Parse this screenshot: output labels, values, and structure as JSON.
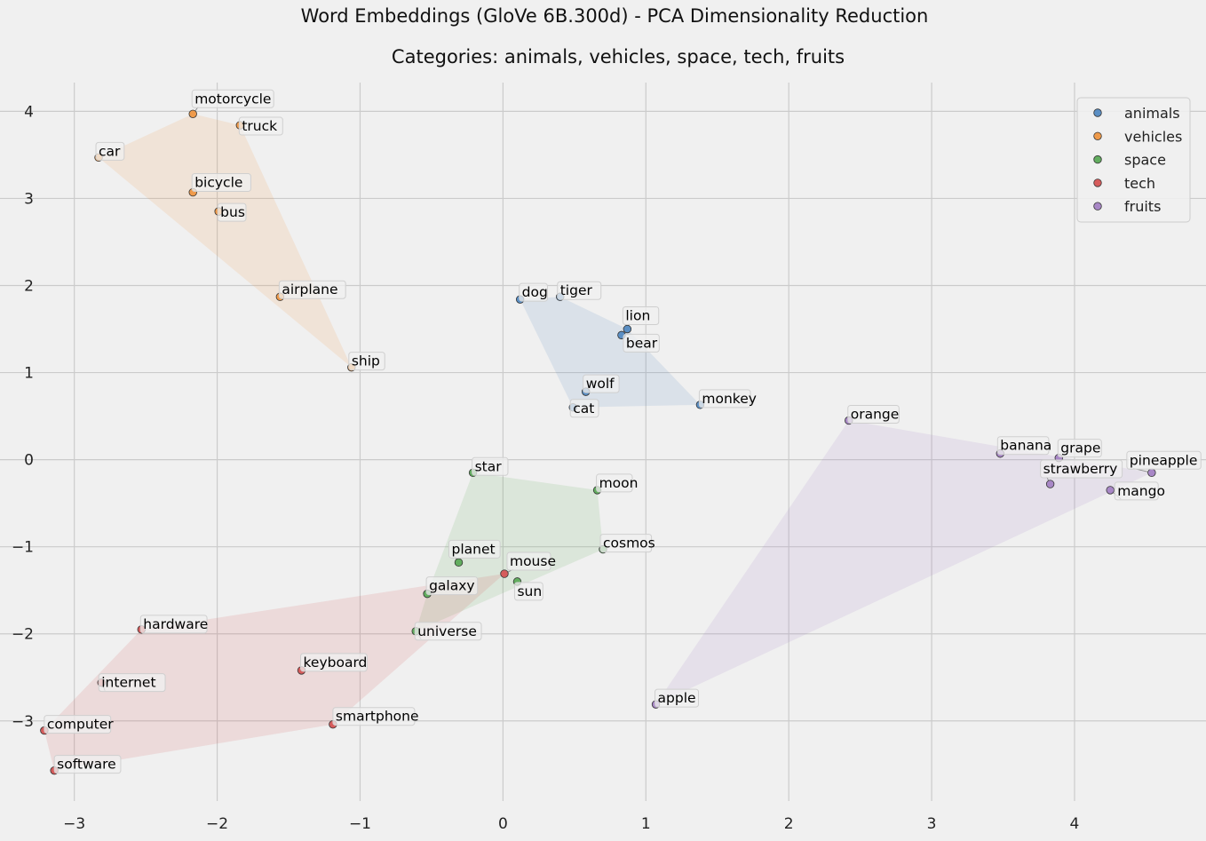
{
  "chart_data": {
    "type": "scatter",
    "title": "Word Embeddings (GloVe 6B.300d) - PCA Dimensionality Reduction",
    "subtitle": "Categories: animals, vehicles, space, tech, fruits",
    "xlabel": "",
    "ylabel": "",
    "xlim": [
      -3.52,
      4.92
    ],
    "ylim": [
      -3.92,
      4.33
    ],
    "xticks": [
      -3,
      -2,
      -1,
      0,
      1,
      2,
      3,
      4
    ],
    "yticks": [
      -3,
      -2,
      -1,
      0,
      1,
      2,
      3,
      4
    ],
    "xtick_labels": [
      "−3",
      "−2",
      "−1",
      "0",
      "1",
      "2",
      "3",
      "4"
    ],
    "ytick_labels": [
      "−3",
      "−2",
      "−1",
      "0",
      "1",
      "2",
      "3",
      "4"
    ],
    "grid": true,
    "legend_position": "top-right",
    "series": [
      {
        "name": "animals",
        "color": "#5b8fc4",
        "points": [
          {
            "word": "dog",
            "x": 0.12,
            "y": 1.84
          },
          {
            "word": "tiger",
            "x": 0.4,
            "y": 1.87
          },
          {
            "word": "lion",
            "x": 0.87,
            "y": 1.5
          },
          {
            "word": "bear",
            "x": 0.83,
            "y": 1.43
          },
          {
            "word": "wolf",
            "x": 0.58,
            "y": 0.78
          },
          {
            "word": "cat",
            "x": 0.49,
            "y": 0.6
          },
          {
            "word": "monkey",
            "x": 1.38,
            "y": 0.63
          }
        ]
      },
      {
        "name": "vehicles",
        "color": "#ef9a4a",
        "points": [
          {
            "word": "motorcycle",
            "x": -2.17,
            "y": 3.97
          },
          {
            "word": "truck",
            "x": -1.84,
            "y": 3.84
          },
          {
            "word": "car",
            "x": -2.83,
            "y": 3.47
          },
          {
            "word": "bicycle",
            "x": -2.17,
            "y": 3.07
          },
          {
            "word": "bus",
            "x": -1.99,
            "y": 2.85
          },
          {
            "word": "airplane",
            "x": -1.56,
            "y": 1.87
          },
          {
            "word": "ship",
            "x": -1.06,
            "y": 1.06
          }
        ]
      },
      {
        "name": "space",
        "color": "#62ad5f",
        "points": [
          {
            "word": "star",
            "x": -0.21,
            "y": -0.15
          },
          {
            "word": "moon",
            "x": 0.66,
            "y": -0.35
          },
          {
            "word": "cosmos",
            "x": 0.7,
            "y": -1.03
          },
          {
            "word": "planet",
            "x": -0.31,
            "y": -1.18
          },
          {
            "word": "sun",
            "x": 0.1,
            "y": -1.4
          },
          {
            "word": "galaxy",
            "x": -0.53,
            "y": -1.54
          },
          {
            "word": "universe",
            "x": -0.61,
            "y": -1.97
          }
        ]
      },
      {
        "name": "tech",
        "color": "#d65c5c",
        "points": [
          {
            "word": "mouse",
            "x": 0.01,
            "y": -1.31
          },
          {
            "word": "hardware",
            "x": -2.53,
            "y": -1.95
          },
          {
            "word": "keyboard",
            "x": -1.41,
            "y": -2.42
          },
          {
            "word": "internet",
            "x": -2.81,
            "y": -2.56
          },
          {
            "word": "computer",
            "x": -3.21,
            "y": -3.11
          },
          {
            "word": "smartphone",
            "x": -1.19,
            "y": -3.04
          },
          {
            "word": "software",
            "x": -3.14,
            "y": -3.57
          }
        ]
      },
      {
        "name": "fruits",
        "color": "#a887c6",
        "points": [
          {
            "word": "orange",
            "x": 2.42,
            "y": 0.45
          },
          {
            "word": "banana",
            "x": 3.48,
            "y": 0.07
          },
          {
            "word": "grape",
            "x": 3.89,
            "y": 0.02
          },
          {
            "word": "strawberry",
            "x": 3.83,
            "y": -0.28
          },
          {
            "word": "pineapple",
            "x": 4.54,
            "y": -0.15
          },
          {
            "word": "mango",
            "x": 4.25,
            "y": -0.35
          },
          {
            "word": "apple",
            "x": 1.07,
            "y": -2.81
          }
        ]
      }
    ]
  }
}
